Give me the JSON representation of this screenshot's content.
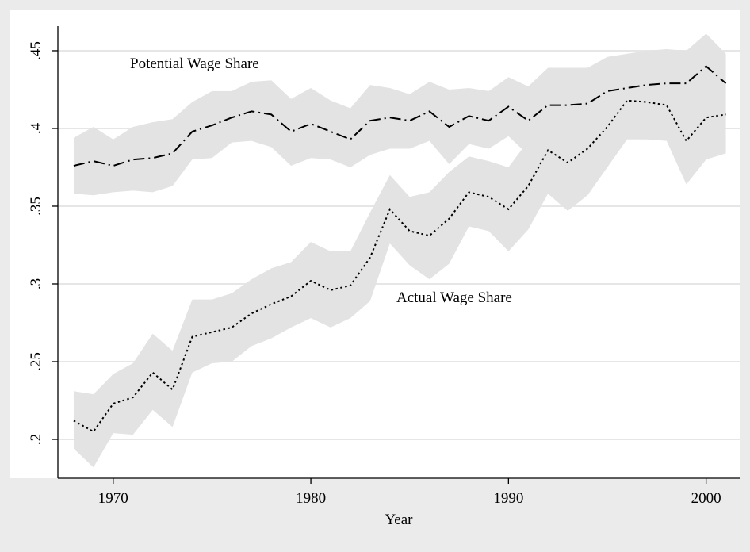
{
  "chart_data": {
    "type": "line",
    "x_label": "Year",
    "x": [
      1968,
      1969,
      1970,
      1971,
      1972,
      1973,
      1974,
      1975,
      1976,
      1977,
      1978,
      1979,
      1980,
      1981,
      1982,
      1983,
      1984,
      1985,
      1986,
      1987,
      1988,
      1989,
      1990,
      1991,
      1992,
      1993,
      1994,
      1995,
      1996,
      1997,
      1998,
      1999,
      2000,
      2001
    ],
    "xlim": [
      1967.2,
      2001.7
    ],
    "xticks": [
      1970,
      1980,
      1990,
      2000
    ],
    "ylim": [
      0.175,
      0.4658
    ],
    "yticks": [
      {
        "value": 0.2,
        "label": ".2"
      },
      {
        "value": 0.25,
        "label": ".25"
      },
      {
        "value": 0.3,
        "label": ".3"
      },
      {
        "value": 0.35,
        "label": ".35"
      },
      {
        "value": 0.4,
        "label": ".4"
      },
      {
        "value": 0.45,
        "label": ".45"
      }
    ],
    "grid": true,
    "band_color": "#e3e3e3",
    "series": [
      {
        "name": "Potential Wage Share",
        "color": "#000000",
        "line_style": "dash-dot",
        "values": [
          0.376,
          0.379,
          0.376,
          0.38,
          0.381,
          0.384,
          0.398,
          0.402,
          0.407,
          0.411,
          0.409,
          0.398,
          0.403,
          0.398,
          0.393,
          0.405,
          0.407,
          0.405,
          0.411,
          0.401,
          0.408,
          0.405,
          0.414,
          0.405,
          0.415,
          0.415,
          0.416,
          0.424,
          0.426,
          0.428,
          0.429,
          0.429,
          0.44,
          0.429
        ],
        "upper": [
          0.394,
          0.401,
          0.393,
          0.401,
          0.404,
          0.406,
          0.417,
          0.424,
          0.424,
          0.43,
          0.431,
          0.419,
          0.426,
          0.418,
          0.413,
          0.428,
          0.426,
          0.422,
          0.43,
          0.425,
          0.426,
          0.424,
          0.433,
          0.427,
          0.439,
          0.439,
          0.439,
          0.446,
          0.448,
          0.45,
          0.451,
          0.45,
          0.461,
          0.448
        ],
        "lower": [
          0.358,
          0.357,
          0.359,
          0.36,
          0.359,
          0.363,
          0.38,
          0.381,
          0.391,
          0.392,
          0.388,
          0.376,
          0.381,
          0.38,
          0.375,
          0.383,
          0.387,
          0.387,
          0.392,
          0.377,
          0.39,
          0.387,
          0.395,
          0.383,
          0.391,
          0.391,
          0.393,
          0.401,
          0.403,
          0.405,
          0.407,
          0.408,
          0.42,
          0.409
        ]
      },
      {
        "name": "Actual Wage Share",
        "color": "#000000",
        "line_style": "dotted",
        "values": [
          0.212,
          0.205,
          0.223,
          0.227,
          0.243,
          0.232,
          0.266,
          0.269,
          0.272,
          0.281,
          0.287,
          0.292,
          0.302,
          0.296,
          0.299,
          0.317,
          0.348,
          0.334,
          0.331,
          0.342,
          0.359,
          0.356,
          0.348,
          0.363,
          0.386,
          0.378,
          0.387,
          0.401,
          0.418,
          0.417,
          0.415,
          0.392,
          0.407,
          0.409
        ],
        "upper": [
          0.231,
          0.229,
          0.242,
          0.249,
          0.268,
          0.257,
          0.29,
          0.29,
          0.294,
          0.303,
          0.31,
          0.314,
          0.327,
          0.321,
          0.321,
          0.346,
          0.37,
          0.356,
          0.359,
          0.372,
          0.382,
          0.379,
          0.375,
          0.392,
          0.41,
          0.402,
          0.404,
          0.418,
          0.425,
          0.428,
          0.432,
          0.419,
          0.435,
          0.431
        ],
        "lower": [
          0.194,
          0.182,
          0.204,
          0.203,
          0.219,
          0.208,
          0.243,
          0.249,
          0.25,
          0.26,
          0.265,
          0.272,
          0.278,
          0.272,
          0.278,
          0.289,
          0.326,
          0.312,
          0.303,
          0.313,
          0.337,
          0.334,
          0.321,
          0.335,
          0.358,
          0.347,
          0.357,
          0.375,
          0.393,
          0.393,
          0.392,
          0.364,
          0.38,
          0.384
        ]
      }
    ]
  }
}
